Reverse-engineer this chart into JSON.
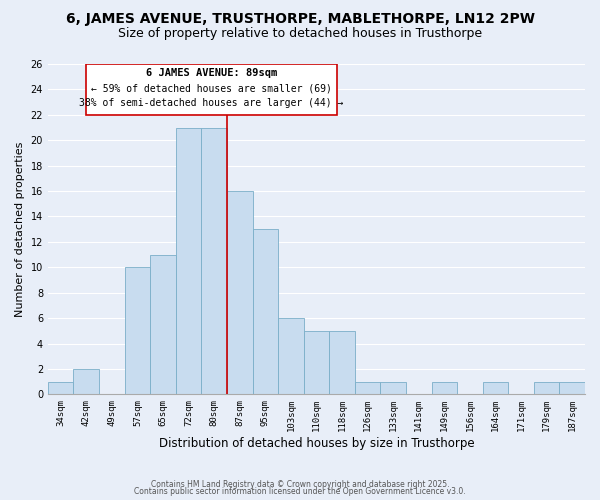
{
  "title": "6, JAMES AVENUE, TRUSTHORPE, MABLETHORPE, LN12 2PW",
  "subtitle": "Size of property relative to detached houses in Trusthorpe",
  "xlabel": "Distribution of detached houses by size in Trusthorpe",
  "ylabel": "Number of detached properties",
  "bar_color": "#c8dcef",
  "bar_edge_color": "#7aaec8",
  "background_color": "#e8eef8",
  "grid_color": "#ffffff",
  "bins": [
    "34sqm",
    "42sqm",
    "49sqm",
    "57sqm",
    "65sqm",
    "72sqm",
    "80sqm",
    "87sqm",
    "95sqm",
    "103sqm",
    "110sqm",
    "118sqm",
    "126sqm",
    "133sqm",
    "141sqm",
    "149sqm",
    "156sqm",
    "164sqm",
    "171sqm",
    "179sqm",
    "187sqm"
  ],
  "values": [
    1,
    2,
    0,
    10,
    11,
    21,
    21,
    16,
    13,
    6,
    5,
    5,
    1,
    1,
    0,
    1,
    0,
    1,
    0,
    1,
    1
  ],
  "ylim": [
    0,
    26
  ],
  "yticks": [
    0,
    2,
    4,
    6,
    8,
    10,
    12,
    14,
    16,
    18,
    20,
    22,
    24,
    26
  ],
  "marker_label": "6 JAMES AVENUE: 89sqm",
  "annotation_line1": "← 59% of detached houses are smaller (69)",
  "annotation_line2": "38% of semi-detached houses are larger (44) →",
  "marker_color": "#cc0000",
  "annotation_box_edge": "#cc0000",
  "footer_line1": "Contains HM Land Registry data © Crown copyright and database right 2025.",
  "footer_line2": "Contains public sector information licensed under the Open Government Licence v3.0.",
  "title_fontsize": 10,
  "subtitle_fontsize": 9,
  "xlabel_fontsize": 8.5,
  "ylabel_fontsize": 8
}
